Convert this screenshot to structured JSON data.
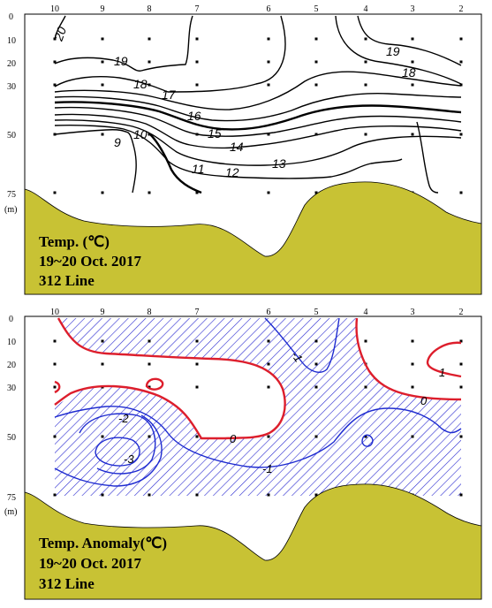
{
  "colors": {
    "bathymetry": "#c8c234",
    "anomaly_negative_hatch": "#2a2ad0",
    "zero_contour": "#dd1e2c",
    "negative_contour": "#1e2bd0",
    "frame": "#000000"
  },
  "chart_data": [
    {
      "type": "contour",
      "title_lines": [
        "Temp. (℃)",
        "19~20 Oct. 2017",
        "312 Line"
      ],
      "station_labels": [
        "10",
        "9",
        "8",
        "7",
        "6",
        "5",
        "4",
        "3",
        "2"
      ],
      "depth_ticks": [
        "0",
        "10",
        "20",
        "30",
        "50",
        "75"
      ],
      "depth_unit": "(m)",
      "depth_values": [
        0,
        10,
        20,
        30,
        50,
        75
      ],
      "contour_levels": [
        20,
        19,
        18,
        17,
        16,
        15,
        14,
        13,
        12,
        11,
        10,
        9
      ],
      "contour_labels": [
        "20",
        "19",
        "18",
        "17",
        "16",
        "15",
        "14",
        "13",
        "12",
        "11",
        "10",
        "9",
        "19",
        "18"
      ]
    },
    {
      "type": "contour",
      "title_lines": [
        "Temp. Anomaly(℃)",
        "19~20 Oct. 2017",
        "312 Line"
      ],
      "station_labels": [
        "10",
        "9",
        "8",
        "7",
        "6",
        "5",
        "4",
        "3",
        "2"
      ],
      "depth_ticks": [
        "0",
        "10",
        "20",
        "30",
        "50",
        "75"
      ],
      "depth_unit": "(m)",
      "depth_values": [
        0,
        10,
        20,
        30,
        50,
        75
      ],
      "contour_levels": [
        1,
        0,
        -1,
        -2,
        -3
      ],
      "contour_labels": [
        "-1",
        "1",
        "0",
        "-2",
        "-3",
        "0",
        "-1"
      ]
    }
  ]
}
